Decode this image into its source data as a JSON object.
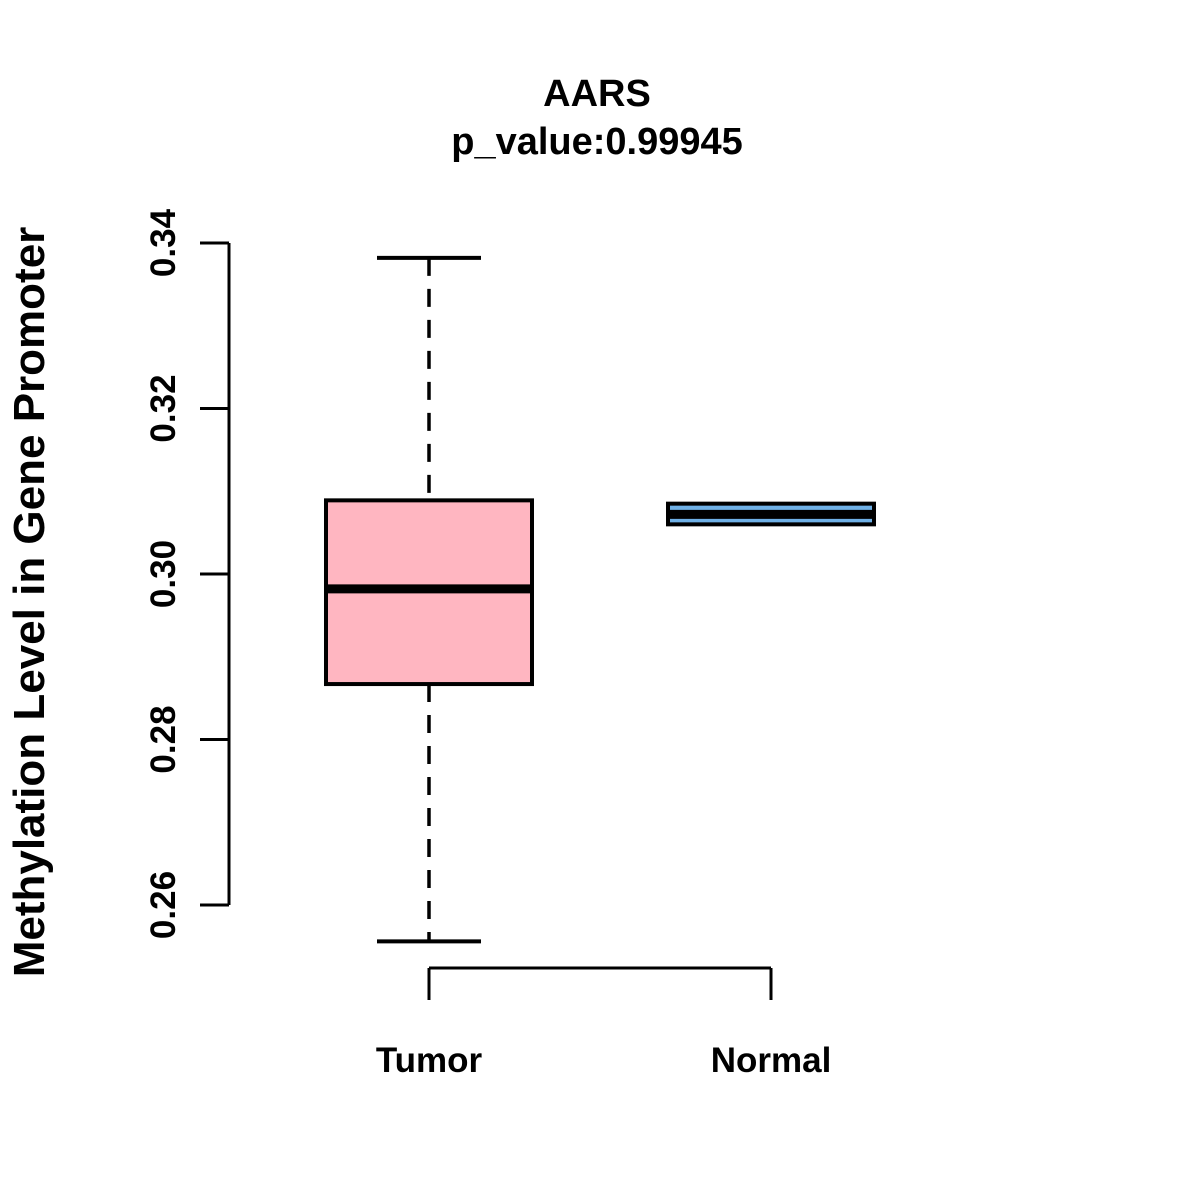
{
  "chart_data": {
    "type": "boxplot",
    "title": "AARS",
    "subtitle": "p_value:0.99945",
    "ylabel": "Methylation Level in Gene Promoter",
    "xlabel": "",
    "categories": [
      "Tumor",
      "Normal"
    ],
    "yticks": [
      0.26,
      0.28,
      0.3,
      0.32,
      0.34
    ],
    "ylim": [
      0.252,
      0.342
    ],
    "grid": false,
    "legend": "none",
    "series": [
      {
        "name": "Tumor",
        "fill": "#FFB6C1",
        "stroke": "#000000",
        "whisker_low": 0.2556,
        "q1": 0.2867,
        "median": 0.2982,
        "q3": 0.3089,
        "whisker_high": 0.3382
      },
      {
        "name": "Normal",
        "fill": "#6FB0E6",
        "stroke": "#000000",
        "whisker_low": 0.306,
        "q1": 0.306,
        "median": 0.3072,
        "q3": 0.3085,
        "whisker_high": 0.3085
      }
    ],
    "text_color": "#000000"
  }
}
